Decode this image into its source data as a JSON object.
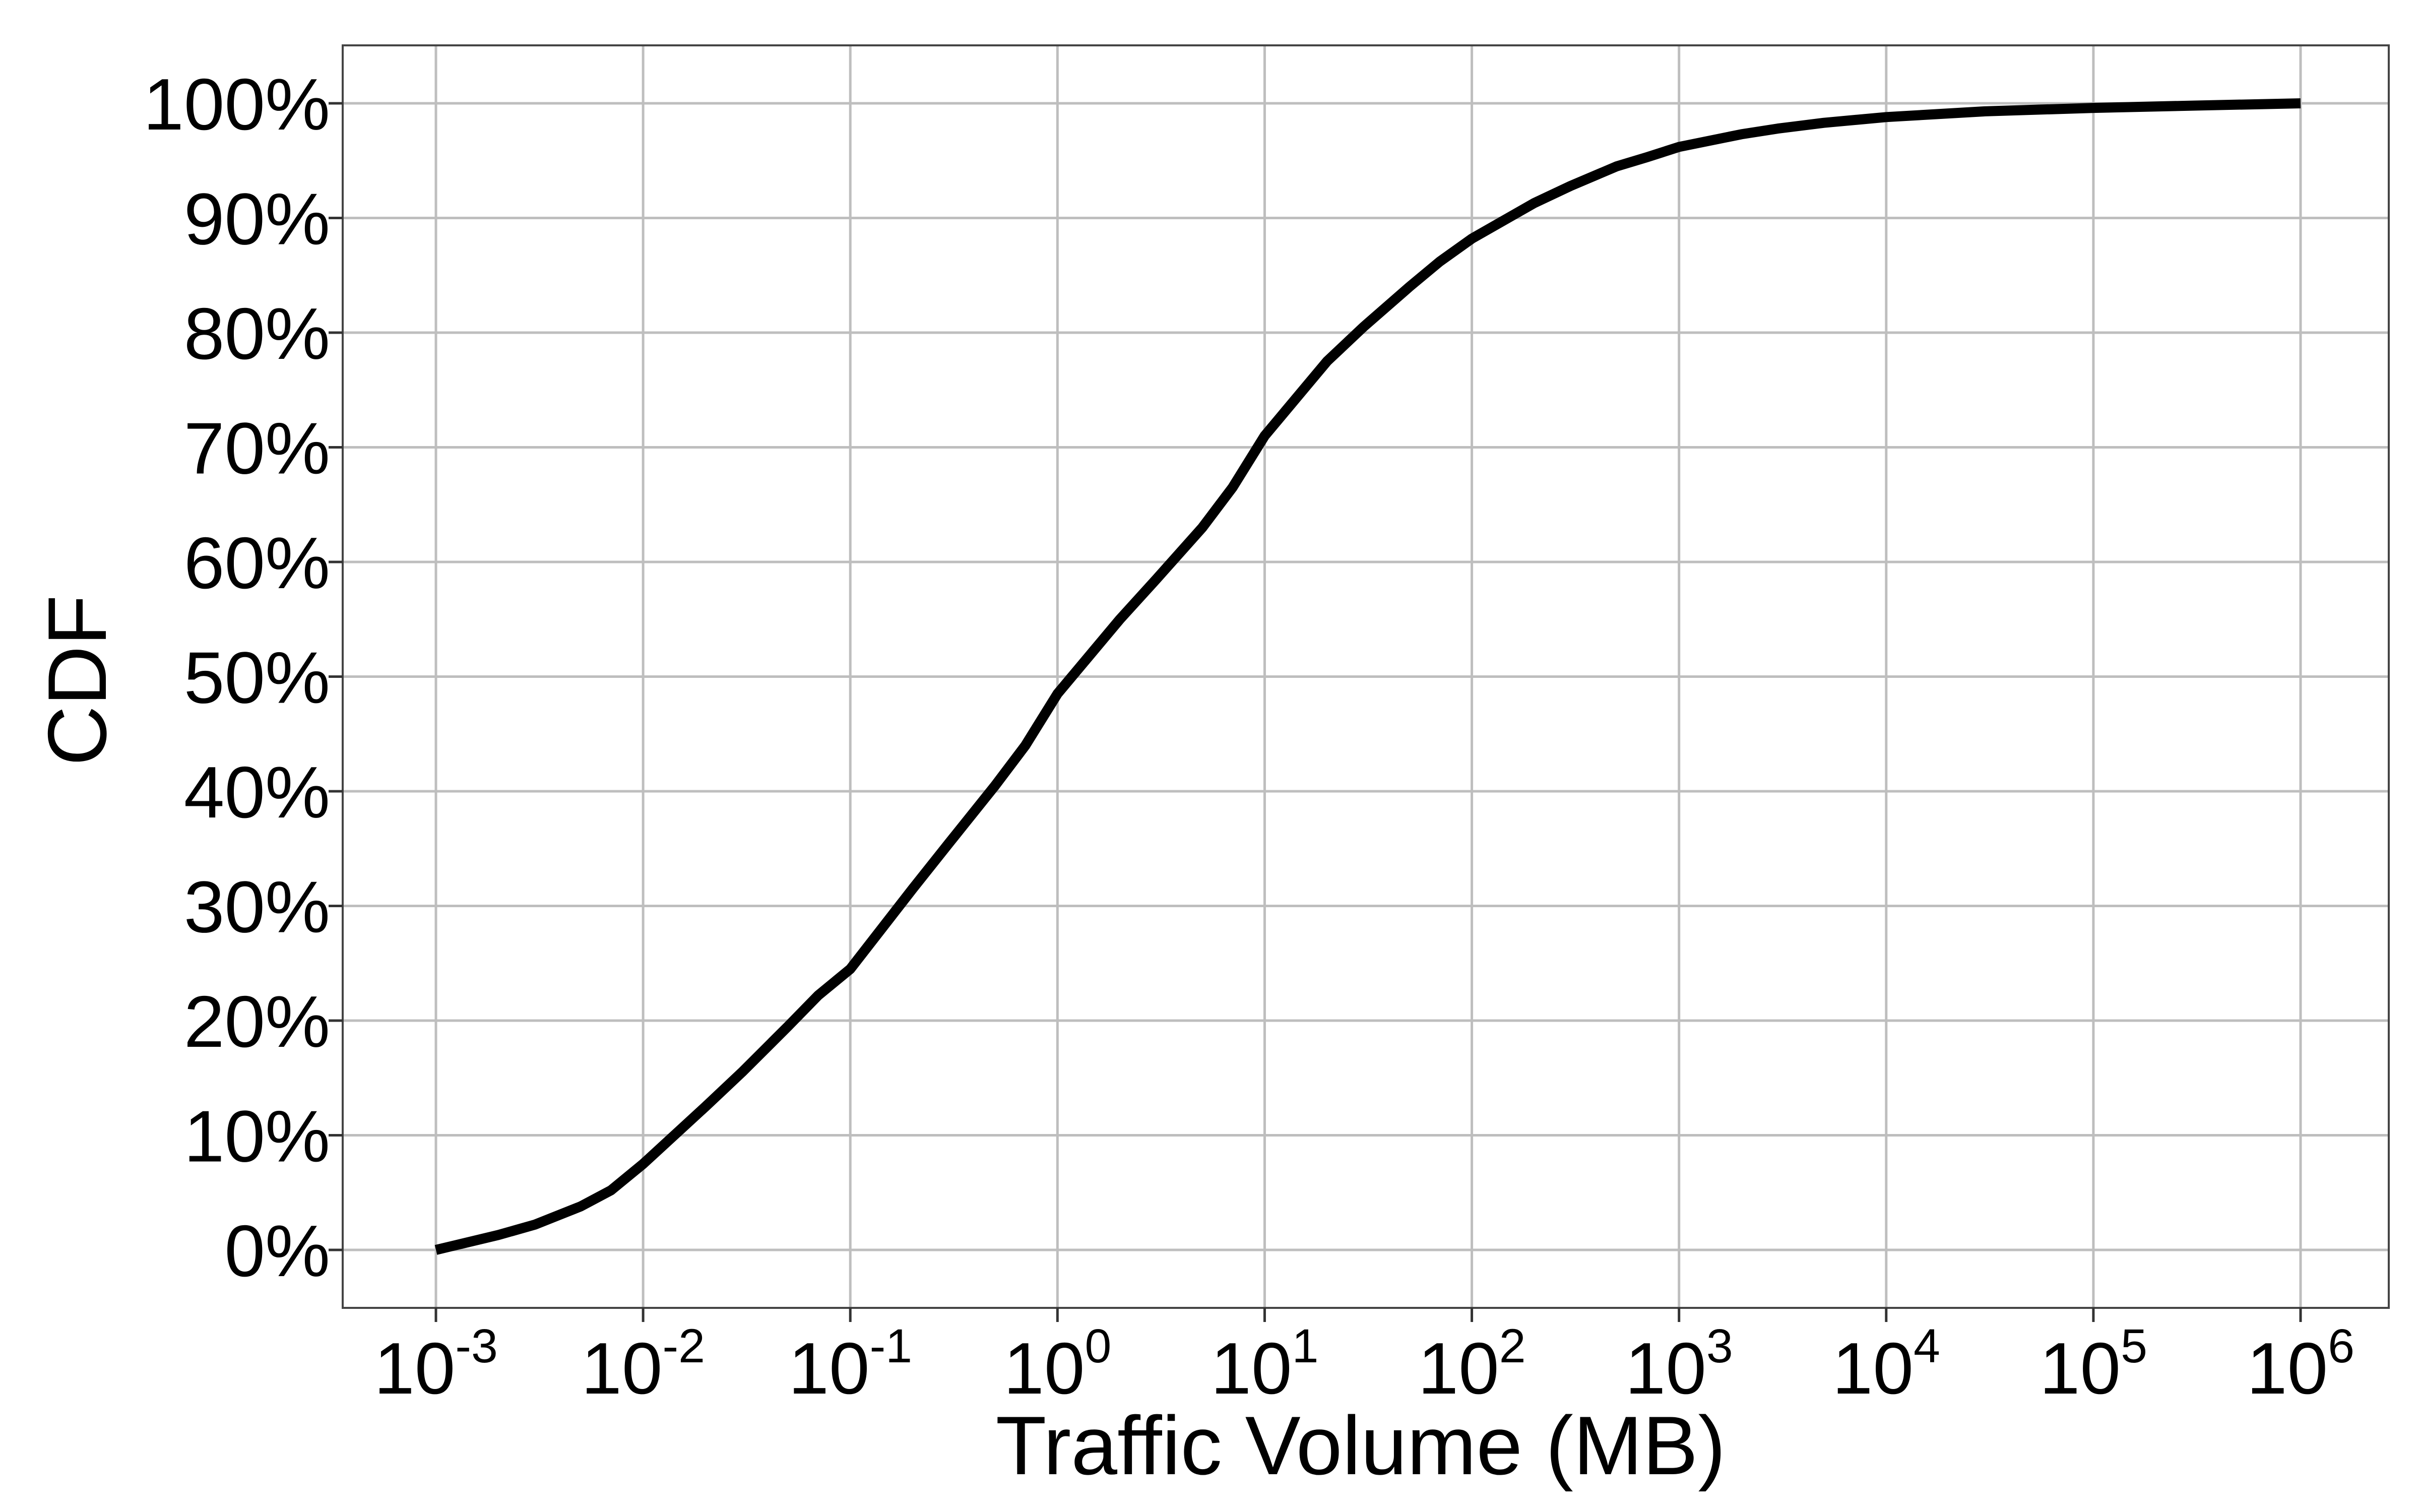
{
  "chart_data": {
    "type": "line",
    "title": "",
    "xlabel": "Traffic Volume (MB)",
    "ylabel": "CDF",
    "x_scale": "log10",
    "xlim": [
      0.001,
      1000000
    ],
    "ylim": [
      0,
      1
    ],
    "grid": true,
    "legend": "none",
    "line_color": "#000000",
    "grid_color": "#bebebe",
    "x_ticks": [
      {
        "base": "10",
        "exp": "-3",
        "value": 0.001
      },
      {
        "base": "10",
        "exp": "-2",
        "value": 0.01
      },
      {
        "base": "10",
        "exp": "-1",
        "value": 0.1
      },
      {
        "base": "10",
        "exp": "0",
        "value": 1
      },
      {
        "base": "10",
        "exp": "1",
        "value": 10
      },
      {
        "base": "10",
        "exp": "2",
        "value": 100
      },
      {
        "base": "10",
        "exp": "3",
        "value": 1000
      },
      {
        "base": "10",
        "exp": "4",
        "value": 10000
      },
      {
        "base": "10",
        "exp": "5",
        "value": 100000
      },
      {
        "base": "10",
        "exp": "6",
        "value": 1000000
      }
    ],
    "y_ticks": [
      {
        "label": "0%",
        "value": 0
      },
      {
        "label": "10%",
        "value": 0.1
      },
      {
        "label": "20%",
        "value": 0.2
      },
      {
        "label": "30%",
        "value": 0.3
      },
      {
        "label": "40%",
        "value": 0.4
      },
      {
        "label": "50%",
        "value": 0.5
      },
      {
        "label": "60%",
        "value": 0.6
      },
      {
        "label": "70%",
        "value": 0.7
      },
      {
        "label": "80%",
        "value": 0.8
      },
      {
        "label": "90%",
        "value": 0.9
      },
      {
        "label": "100%",
        "value": 1.0
      }
    ],
    "series": [
      {
        "x": [
          0.001,
          0.002,
          0.003,
          0.005,
          0.007,
          0.01,
          0.02,
          0.03,
          0.05,
          0.07,
          0.1,
          0.2,
          0.3,
          0.5,
          0.7,
          1,
          2,
          3,
          5,
          7,
          10,
          20,
          30,
          50,
          70,
          100,
          200,
          300,
          500,
          700,
          1000,
          2000,
          3000,
          5000,
          10000,
          30000,
          100000,
          300000,
          1000000
        ],
        "y": [
          0.0,
          0.013,
          0.022,
          0.038,
          0.052,
          0.075,
          0.125,
          0.155,
          0.195,
          0.222,
          0.245,
          0.315,
          0.355,
          0.405,
          0.44,
          0.485,
          0.55,
          0.585,
          0.63,
          0.665,
          0.71,
          0.775,
          0.805,
          0.84,
          0.862,
          0.882,
          0.913,
          0.928,
          0.945,
          0.953,
          0.962,
          0.973,
          0.978,
          0.983,
          0.988,
          0.993,
          0.996,
          0.998,
          1.0
        ]
      }
    ]
  }
}
